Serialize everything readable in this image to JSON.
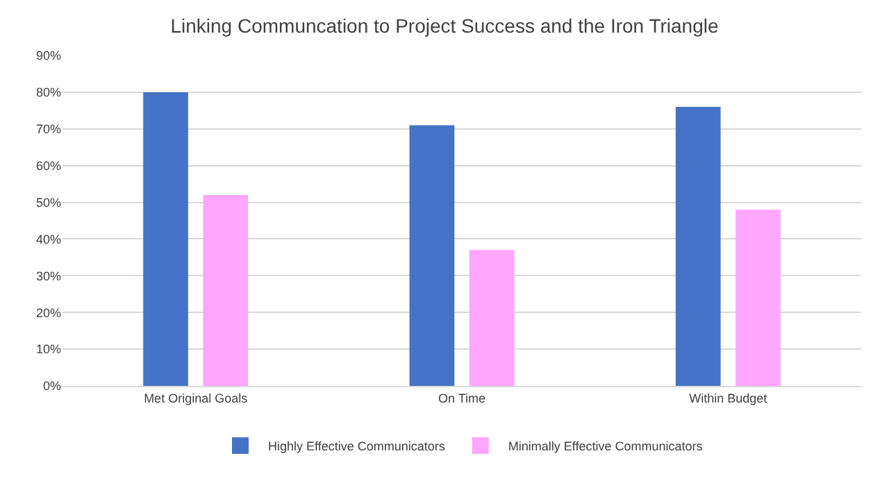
{
  "chart_data": {
    "type": "bar",
    "title": "Linking Communcation to Project Success and the Iron Triangle",
    "categories": [
      "Met Original Goals",
      "On Time",
      "Within Budget"
    ],
    "series": [
      {
        "name": "Highly Effective Communicators",
        "color": "#4472c4",
        "values": [
          80,
          71,
          76
        ]
      },
      {
        "name": "Minimally Effective Communicators",
        "color": "#ffa6ff",
        "values": [
          52,
          37,
          48
        ]
      }
    ],
    "ylim": [
      0,
      90
    ],
    "yticks": [
      {
        "value": 0,
        "label": "0%"
      },
      {
        "value": 10,
        "label": "10%"
      },
      {
        "value": 20,
        "label": "20%"
      },
      {
        "value": 30,
        "label": "30%"
      },
      {
        "value": 40,
        "label": "40%"
      },
      {
        "value": 50,
        "label": "50%"
      },
      {
        "value": 60,
        "label": "60%"
      },
      {
        "value": 70,
        "label": "70%"
      },
      {
        "value": 80,
        "label": "80%"
      },
      {
        "value": 90,
        "label": "90%"
      }
    ],
    "grid": "y",
    "legend": "bottom"
  }
}
